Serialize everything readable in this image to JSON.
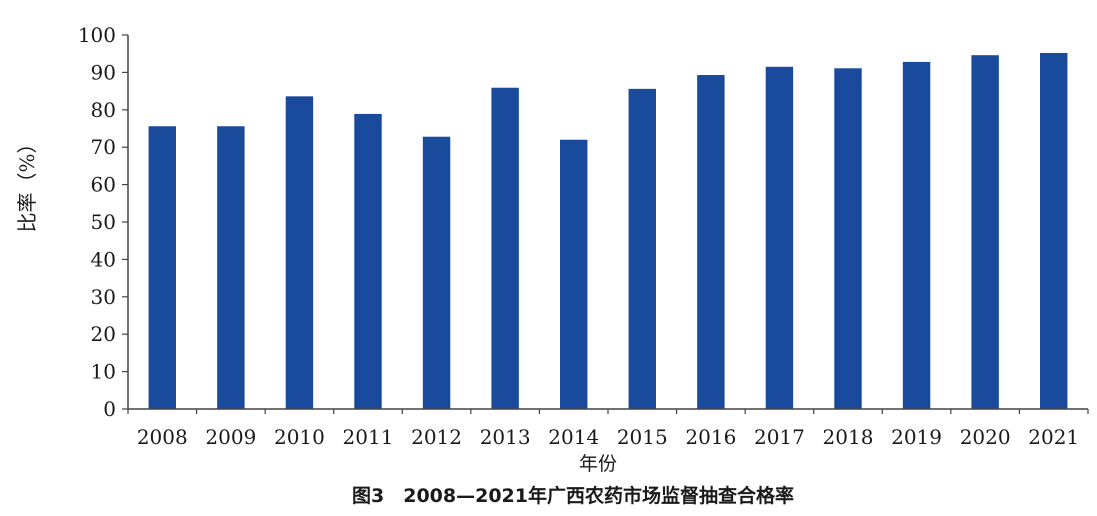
{
  "chart_data": {
    "type": "bar",
    "title": "",
    "caption": "图3　2008—2021年广西农药市场监督抽查合格率",
    "xlabel": "年份",
    "ylabel": "比率（%）",
    "ylim": [
      0,
      100
    ],
    "yticks": [
      0,
      10,
      20,
      30,
      40,
      50,
      60,
      70,
      80,
      90,
      100
    ],
    "grid": false,
    "legend": "none",
    "categories": [
      "2008",
      "2009",
      "2010",
      "2011",
      "2012",
      "2013",
      "2014",
      "2015",
      "2016",
      "2017",
      "2018",
      "2019",
      "2020",
      "2021"
    ],
    "values": [
      75.6,
      75.6,
      83.6,
      78.9,
      72.8,
      85.9,
      72.0,
      85.6,
      89.3,
      91.5,
      91.1,
      92.8,
      94.6,
      95.2
    ],
    "bar_color": "#1a4a9c",
    "axis_color": "#444444"
  }
}
